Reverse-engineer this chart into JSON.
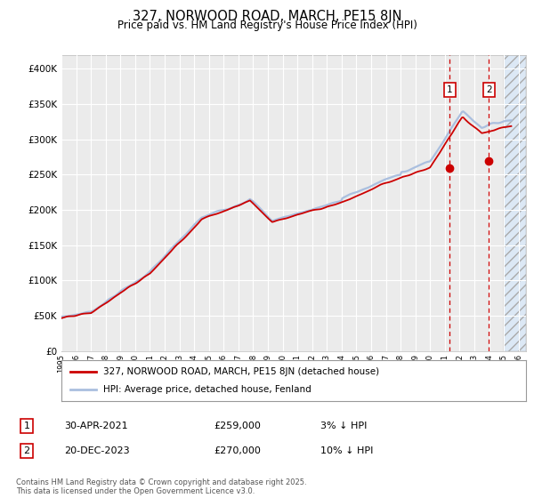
{
  "title": "327, NORWOOD ROAD, MARCH, PE15 8JN",
  "subtitle": "Price paid vs. HM Land Registry's House Price Index (HPI)",
  "legend_line1": "327, NORWOOD ROAD, MARCH, PE15 8JN (detached house)",
  "legend_line2": "HPI: Average price, detached house, Fenland",
  "annotation1_date": "30-APR-2021",
  "annotation1_price": "£259,000",
  "annotation1_hpi": "3% ↓ HPI",
  "annotation2_date": "20-DEC-2023",
  "annotation2_price": "£270,000",
  "annotation2_hpi": "10% ↓ HPI",
  "footer": "Contains HM Land Registry data © Crown copyright and database right 2025.\nThis data is licensed under the Open Government Licence v3.0.",
  "hpi_color": "#aabfdf",
  "price_color": "#cc0000",
  "marker1_x": 2021.33,
  "marker2_x": 2023.97,
  "marker1_y": 259000,
  "marker2_y": 270000,
  "background_color": "#ffffff",
  "plot_bg_color": "#ebebeb",
  "grid_color": "#ffffff",
  "future_hatch_start": 2025.0,
  "future_bg_color": "#dce8f5",
  "ylim": [
    0,
    420000
  ],
  "xlim_start": 1995,
  "xlim_end": 2026.5
}
